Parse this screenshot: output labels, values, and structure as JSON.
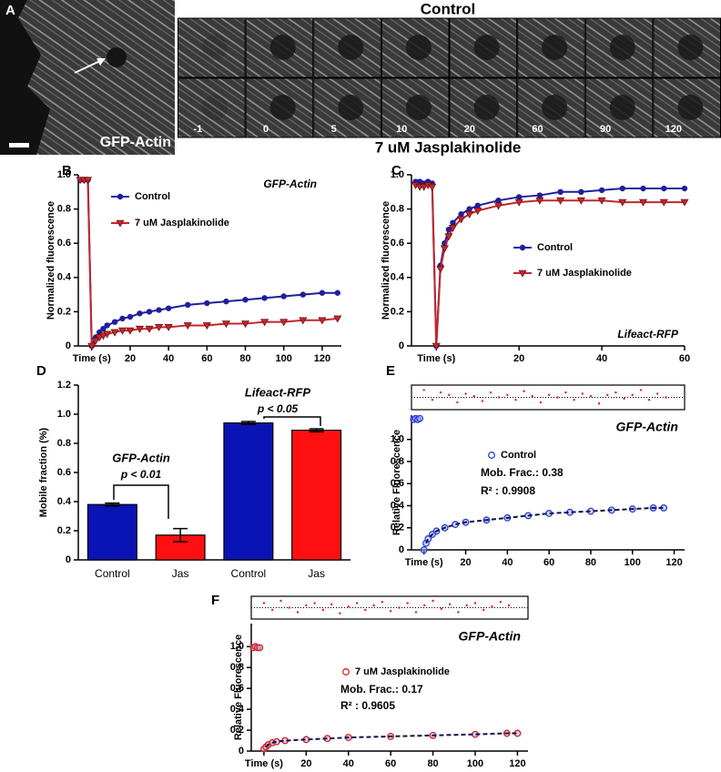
{
  "figure_a": {
    "label": "A",
    "image_label": "GFP-Actin",
    "top_title": "Control",
    "bottom_title": "7 uM Jasplakinolide",
    "time_labels": [
      "-1",
      "0",
      "5",
      "10",
      "20",
      "60",
      "90",
      "120"
    ]
  },
  "chart_data": [
    {
      "type": "line",
      "panel_label": "B",
      "ylabel": "Normalized fluorescence",
      "annotations": [
        "GFP-Actin"
      ],
      "x": [
        -6,
        -4,
        -2,
        0,
        2,
        4,
        6,
        8,
        12,
        16,
        20,
        25,
        30,
        35,
        40,
        50,
        60,
        70,
        80,
        90,
        100,
        110,
        120,
        128
      ],
      "series": [
        {
          "name": "Control",
          "color": "#1f1f9e",
          "marker": "circle",
          "values": [
            0.97,
            0.97,
            0.97,
            0,
            0.05,
            0.08,
            0.1,
            0.12,
            0.14,
            0.16,
            0.17,
            0.19,
            0.2,
            0.21,
            0.22,
            0.24,
            0.25,
            0.26,
            0.27,
            0.28,
            0.29,
            0.3,
            0.31,
            0.31
          ]
        },
        {
          "name": "7 uM Jasplakinolide",
          "color": "#c1272d",
          "marker": "triangle-down",
          "values": [
            0.97,
            0.97,
            0.97,
            0,
            0.03,
            0.05,
            0.06,
            0.07,
            0.08,
            0.09,
            0.09,
            0.1,
            0.1,
            0.11,
            0.11,
            0.12,
            0.12,
            0.13,
            0.13,
            0.14,
            0.14,
            0.15,
            0.15,
            0.16
          ]
        }
      ],
      "xlim": [
        -7,
        130
      ],
      "xticks": [
        {
          "value": 0,
          "label": "Time (s)"
        },
        20,
        40,
        60,
        80,
        100,
        120
      ],
      "ylim": [
        0,
        1
      ],
      "yticks": [
        0,
        0.2,
        0.4,
        0.6,
        0.8,
        {
          "value": 1,
          "label": "1.0"
        }
      ]
    },
    {
      "type": "line",
      "panel_label": "C",
      "ylabel": "Normalized fluorescence",
      "annotations": [
        "Lifeact-RFP"
      ],
      "x": [
        -5,
        -4,
        -3,
        -2,
        -1,
        0,
        1,
        2,
        3,
        4,
        6,
        8,
        10,
        15,
        20,
        25,
        30,
        35,
        40,
        45,
        50,
        55,
        60
      ],
      "series": [
        {
          "name": "Control",
          "color": "#1f1f9e",
          "marker": "circle",
          "values": [
            0.96,
            0.96,
            0.95,
            0.96,
            0.95,
            0,
            0.47,
            0.6,
            0.68,
            0.72,
            0.77,
            0.8,
            0.82,
            0.85,
            0.87,
            0.88,
            0.9,
            0.9,
            0.91,
            0.92,
            0.92,
            0.92,
            0.92
          ]
        },
        {
          "name": "7 uM Jasplakinolide",
          "color": "#c1272d",
          "marker": "triangle-down",
          "values": [
            0.94,
            0.93,
            0.93,
            0.94,
            0.93,
            0,
            0.45,
            0.57,
            0.64,
            0.69,
            0.74,
            0.77,
            0.79,
            0.82,
            0.84,
            0.85,
            0.85,
            0.85,
            0.85,
            0.84,
            0.84,
            0.84,
            0.84
          ]
        }
      ],
      "xlim": [
        -6,
        60
      ],
      "xticks": [
        {
          "value": 0,
          "label": "Time (s)"
        },
        20,
        40,
        60
      ],
      "ylim": [
        0,
        1
      ],
      "yticks": [
        0,
        0.2,
        0.4,
        0.6,
        0.8,
        {
          "value": 1,
          "label": "1.0"
        }
      ]
    },
    {
      "type": "bar",
      "panel_label": "D",
      "ylabel": "Mobile fraction (%)",
      "annotations": [
        "GFP-Actin",
        "p < 0.01",
        "Lifeact-RFP",
        "p < 0.05"
      ],
      "categories": [
        "Control",
        "Jas",
        "Control",
        "Jas"
      ],
      "values": [
        0.38,
        0.17,
        0.94,
        0.89
      ],
      "errors": [
        0.01,
        0.045,
        0.01,
        0.01
      ],
      "colors": [
        "#0a14b4",
        "#ff1010",
        "#0a14b4",
        "#ff1010"
      ],
      "ylim": [
        0,
        1.2
      ],
      "yticks": [
        0,
        0.2,
        0.4,
        0.6,
        0.8,
        {
          "value": 1,
          "label": "1.0"
        },
        1.2
      ]
    },
    {
      "type": "scatter",
      "panel_label": "E",
      "ylabel": "Relative Fluorescence",
      "annotations": [
        "GFP-Actin",
        "Mob. Frac.: 0.38",
        "R² : 0.9908"
      ],
      "x": [
        -5,
        -4,
        -3,
        -2,
        0,
        1,
        2,
        4,
        6,
        10,
        15,
        20,
        30,
        40,
        50,
        60,
        70,
        80,
        90,
        100,
        110,
        115
      ],
      "series": [
        {
          "name": "Control",
          "color": "#2b3fd6",
          "values": [
            1.18,
            1.19,
            1.18,
            1.19,
            0,
            0.06,
            0.1,
            0.14,
            0.17,
            0.2,
            0.23,
            0.25,
            0.27,
            0.29,
            0.31,
            0.33,
            0.34,
            0.35,
            0.36,
            0.37,
            0.38,
            0.38
          ]
        }
      ],
      "fit": {
        "color": "#10104a",
        "x": [
          1,
          2,
          4,
          6,
          10,
          15,
          20,
          30,
          40,
          50,
          60,
          70,
          80,
          90,
          100,
          110,
          115
        ],
        "values": [
          0.06,
          0.1,
          0.14,
          0.17,
          0.2,
          0.23,
          0.25,
          0.27,
          0.29,
          0.31,
          0.33,
          0.34,
          0.35,
          0.36,
          0.37,
          0.38,
          0.38
        ]
      },
      "residuals": {
        "color": "#e02020",
        "ylim": [
          -0.05,
          0.05
        ],
        "x": [
          0,
          4,
          8,
          12,
          16,
          20,
          24,
          28,
          32,
          36,
          40,
          44,
          48,
          52,
          56,
          60,
          64,
          68,
          72,
          76,
          80,
          84,
          88,
          92,
          96,
          100,
          104,
          108,
          112,
          116
        ],
        "values": [
          0.03,
          -0.01,
          0.02,
          0.01,
          -0.02,
          0.015,
          0.005,
          -0.015,
          0.02,
          0.0,
          0.01,
          -0.01,
          0.025,
          0.005,
          -0.02,
          0.01,
          0.0,
          0.02,
          -0.01,
          0.015,
          0.005,
          -0.025,
          0.01,
          0.02,
          -0.005,
          0.01,
          0.03,
          -0.01,
          0.015,
          0.0
        ]
      },
      "xlim": [
        -6,
        125
      ],
      "xticks": [
        {
          "value": 0,
          "label": "Time (s)"
        },
        20,
        40,
        60,
        80,
        100,
        120
      ],
      "ylim": [
        0,
        1.22
      ],
      "yticks": [
        0,
        0.2,
        0.4,
        0.6,
        0.8,
        {
          "value": 1,
          "label": "1.0"
        }
      ]
    },
    {
      "type": "scatter",
      "panel_label": "F",
      "ylabel": "Relative Fluorescence",
      "annotations": [
        "GFP-Actin",
        "Mob. Frac.: 0.17",
        "R² : 0.9605"
      ],
      "x": [
        -5,
        -4,
        -3,
        -2,
        0,
        1,
        2,
        4,
        6,
        10,
        20,
        30,
        40,
        60,
        80,
        100,
        115,
        120
      ],
      "series": [
        {
          "name": "7 uM Jasplakinolide",
          "color": "#e02020",
          "values": [
            0.99,
            1.0,
            0.99,
            0.99,
            0.02,
            0.04,
            0.06,
            0.08,
            0.09,
            0.1,
            0.11,
            0.12,
            0.13,
            0.14,
            0.15,
            0.16,
            0.17,
            0.17
          ]
        }
      ],
      "fit": {
        "color": "#10104a",
        "x": [
          1,
          2,
          4,
          6,
          10,
          20,
          30,
          40,
          60,
          80,
          100,
          115,
          120
        ],
        "values": [
          0.04,
          0.06,
          0.08,
          0.09,
          0.1,
          0.11,
          0.12,
          0.13,
          0.14,
          0.15,
          0.16,
          0.17,
          0.17
        ]
      },
      "residuals": {
        "color": "#e02020",
        "ylim": [
          -0.05,
          0.05
        ],
        "x": [
          0,
          4,
          8,
          12,
          16,
          20,
          24,
          28,
          32,
          36,
          40,
          44,
          48,
          52,
          56,
          60,
          64,
          68,
          72,
          76,
          80,
          84,
          88,
          92,
          96,
          100,
          104,
          108,
          112,
          116
        ],
        "values": [
          0.02,
          -0.01,
          0.03,
          0.0,
          -0.02,
          0.01,
          0.02,
          -0.01,
          0.015,
          -0.025,
          0.005,
          0.02,
          -0.01,
          0.01,
          0.025,
          -0.015,
          0.0,
          0.02,
          -0.02,
          0.01,
          0.03,
          -0.005,
          0.015,
          -0.02,
          0.01,
          0.02,
          -0.01,
          0.005,
          0.025,
          0.01
        ]
      },
      "xlim": [
        -6,
        125
      ],
      "xticks": [
        {
          "value": 0,
          "label": "Time (s)"
        },
        20,
        40,
        60,
        80,
        100,
        120
      ],
      "ylim": [
        0,
        1.22
      ],
      "yticks": [
        0,
        0.2,
        0.4,
        0.6,
        0.8,
        {
          "value": 1,
          "label": "1.0"
        }
      ]
    }
  ]
}
